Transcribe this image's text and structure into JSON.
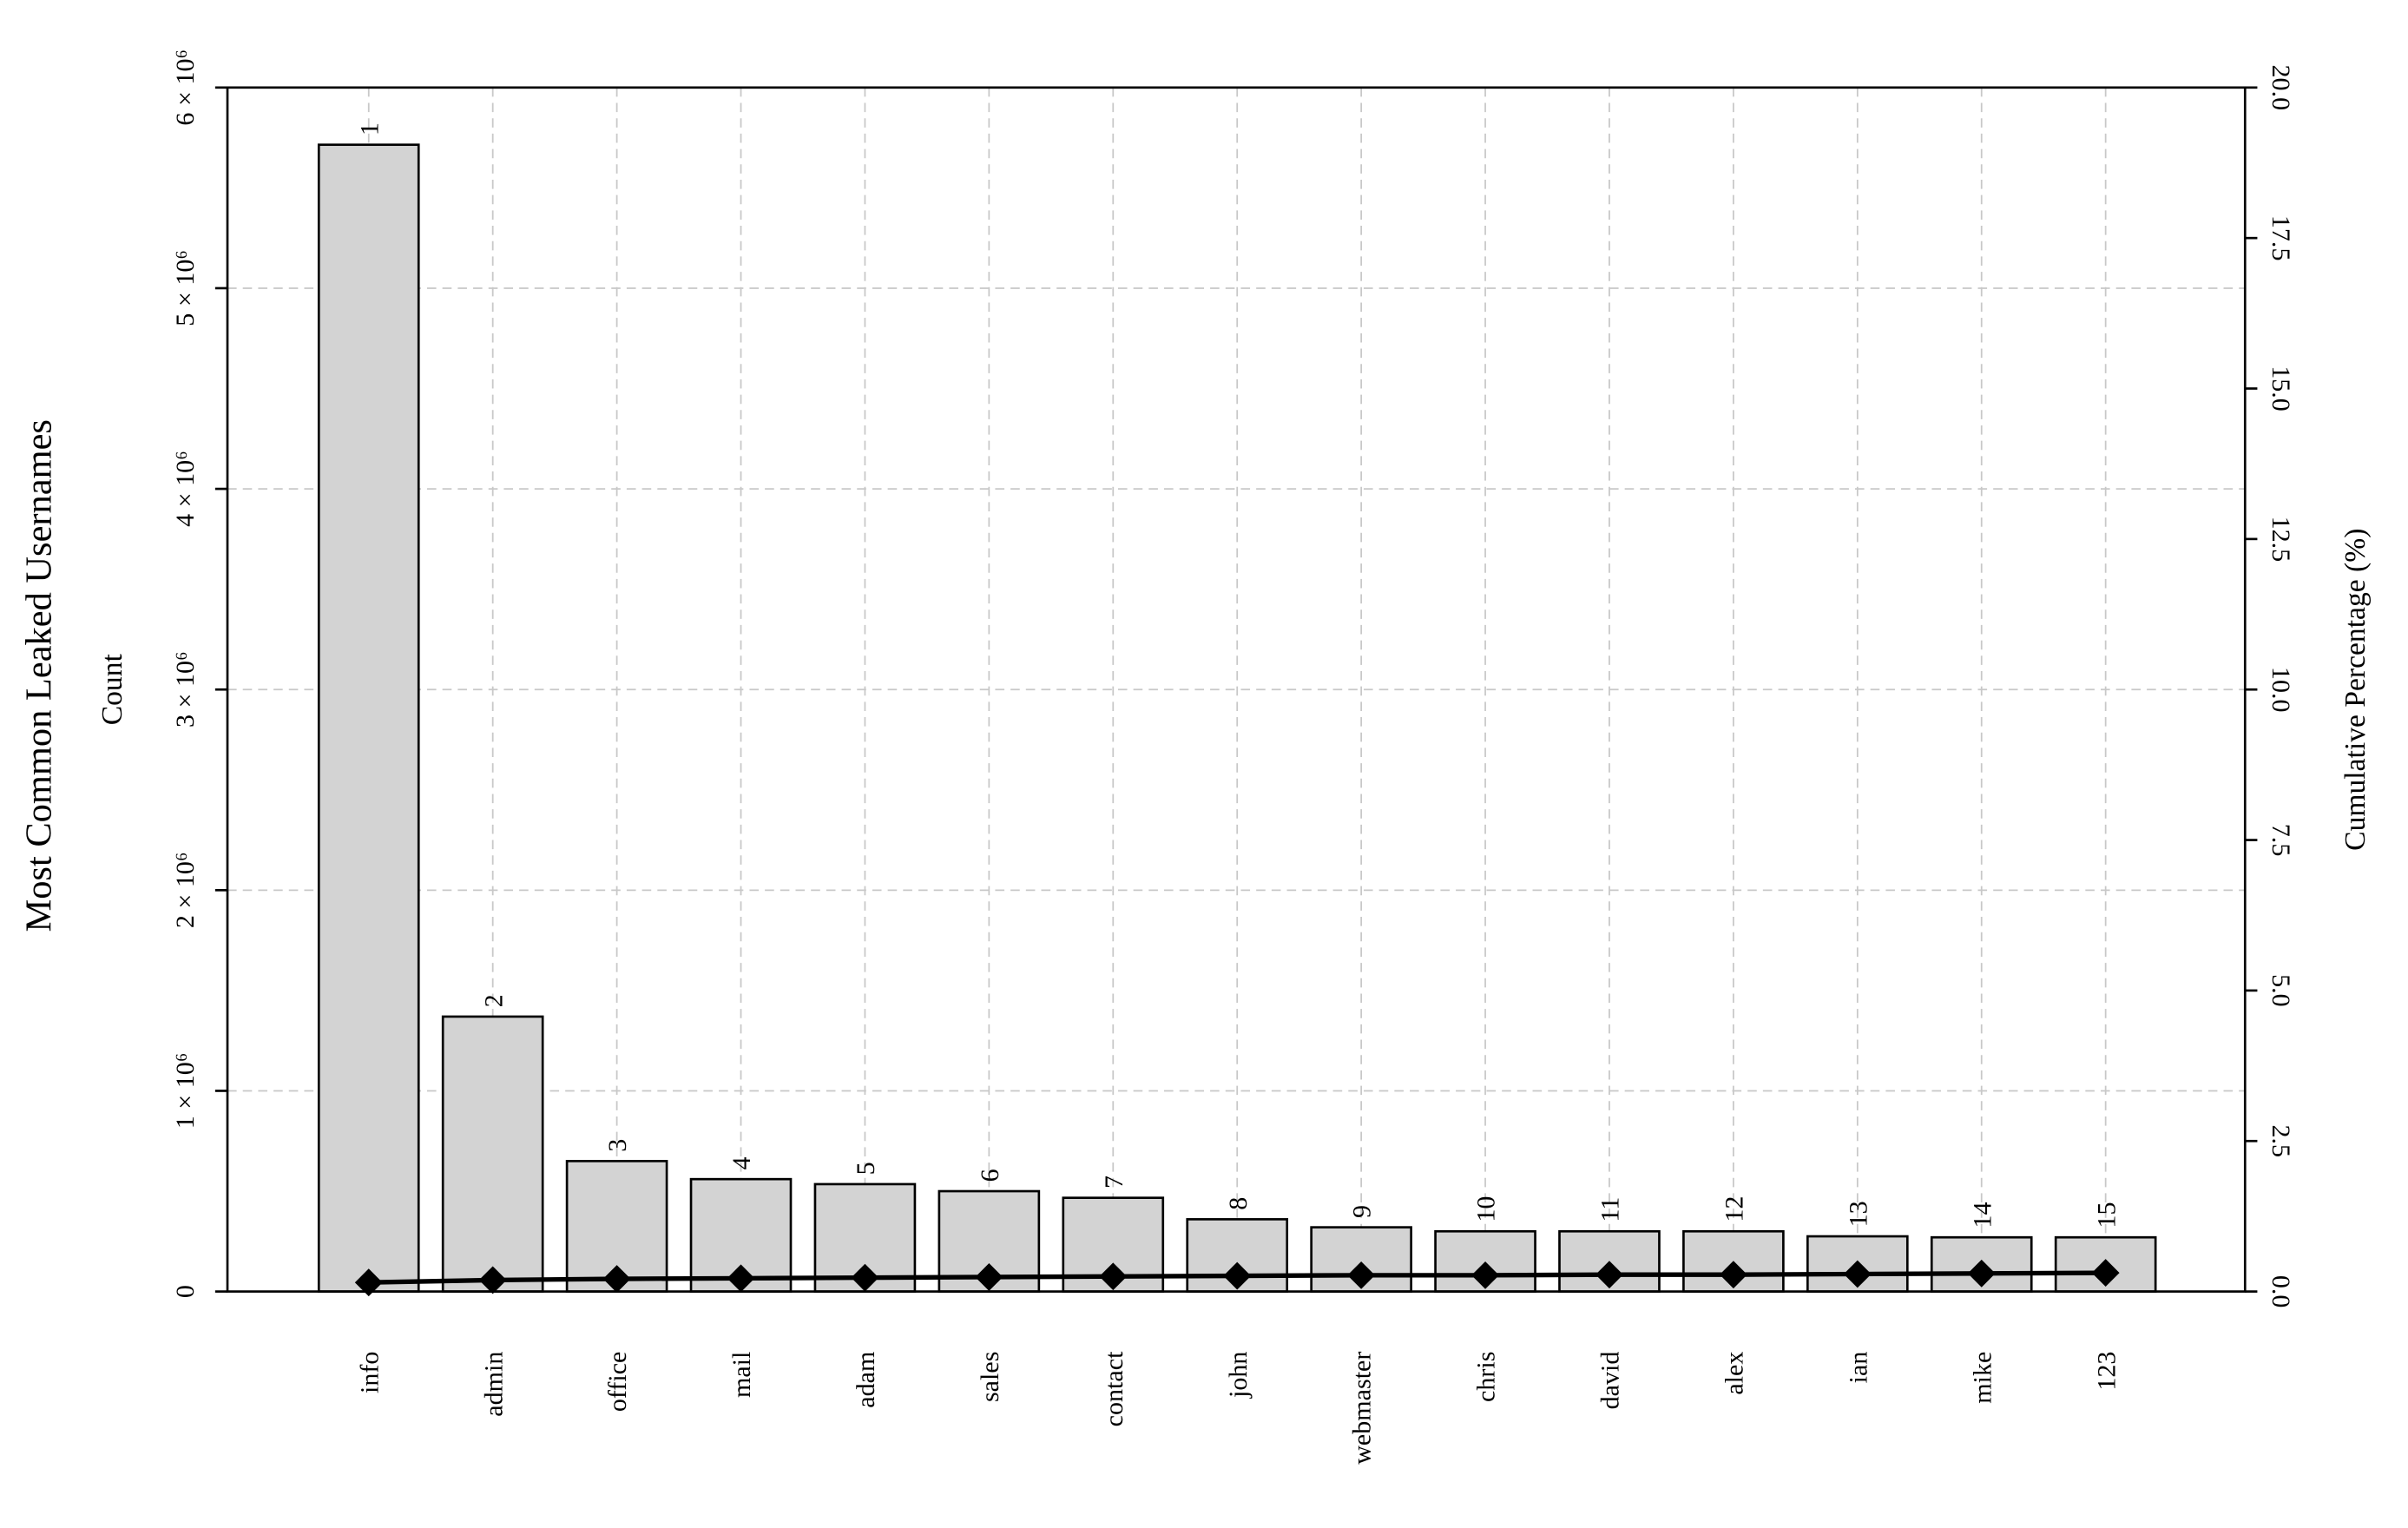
{
  "chart_data": {
    "type": "bar",
    "title": "Most Common Leaked Usernames",
    "y_label": "Count",
    "y2_label": "Cumulative Percentage (%)",
    "categories": [
      "info",
      "admin",
      "office",
      "mail",
      "adam",
      "sales",
      "contact",
      "john",
      "webmaster",
      "chris",
      "david",
      "alex",
      "ian",
      "mike",
      "123"
    ],
    "bar_labels": [
      1,
      2,
      3,
      4,
      5,
      6,
      7,
      8,
      9,
      10,
      11,
      12,
      13,
      14,
      15
    ],
    "series": [
      {
        "color": "#d3d3d3",
        "values": [
          5715000,
          1370000,
          650000,
          560000,
          535000,
          500000,
          467000,
          360000,
          320000,
          300000,
          300000,
          300000,
          275000,
          270000,
          270000
        ]
      },
      {
        "color": "#000000",
        "axis": "y2",
        "values": [
          0.15,
          0.19,
          0.21,
          0.22,
          0.23,
          0.24,
          0.25,
          0.26,
          0.27,
          0.27,
          0.28,
          0.28,
          0.29,
          0.3,
          0.31
        ]
      }
    ],
    "ylim": [
      0,
      6000000
    ],
    "yticks": [
      0,
      {
        "value": 1000000,
        "label": "1 × 10⁶"
      },
      {
        "value": 2000000,
        "label": "2 × 10⁶"
      },
      {
        "value": 3000000,
        "label": "3 × 10⁶"
      },
      {
        "value": 4000000,
        "label": "4 × 10⁶"
      },
      {
        "value": 5000000,
        "label": "5 × 10⁶"
      },
      {
        "value": 6000000,
        "label": "6 × 10⁶"
      }
    ],
    "y2lim": [
      0,
      20
    ],
    "y2ticks": [
      {
        "value": 0,
        "label": "0.0"
      },
      {
        "value": 2.5,
        "label": "2.5"
      },
      {
        "value": 5,
        "label": "5.0"
      },
      {
        "value": 7.5,
        "label": "7.5"
      },
      {
        "value": 10,
        "label": "10.0"
      },
      {
        "value": 12.5,
        "label": "12.5"
      },
      {
        "value": 15,
        "label": "15.0"
      },
      {
        "value": 17.5,
        "label": "17.5"
      },
      {
        "value": 20,
        "label": "20.0"
      }
    ],
    "grid": true
  }
}
